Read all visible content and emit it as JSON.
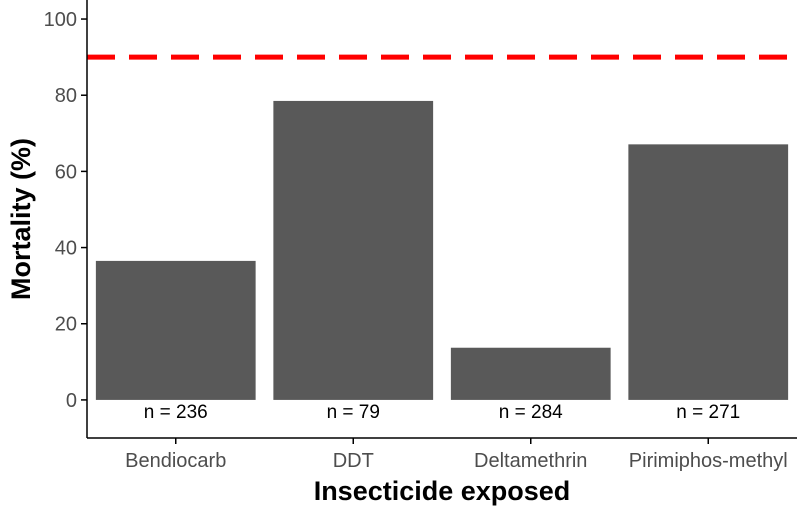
{
  "chart_data": {
    "type": "bar",
    "title": "",
    "xlabel": "Insecticide exposed",
    "ylabel": "Mortality (%)",
    "categories": [
      "Bendiocarb",
      "DDT",
      "Deltamethrin",
      "Pirimiphos-methyl"
    ],
    "values": [
      36.5,
      78.5,
      13.7,
      67.1
    ],
    "sample_size_labels": [
      "n = 236",
      "n = 79",
      "n = 284",
      "n = 271"
    ],
    "ylim": [
      -10,
      105
    ],
    "yticks": [
      0,
      20,
      40,
      60,
      80,
      100
    ],
    "threshold": {
      "value": 90,
      "style": "dashed",
      "color": "#ff0000"
    },
    "bar_color": "#595959",
    "grid": false
  }
}
